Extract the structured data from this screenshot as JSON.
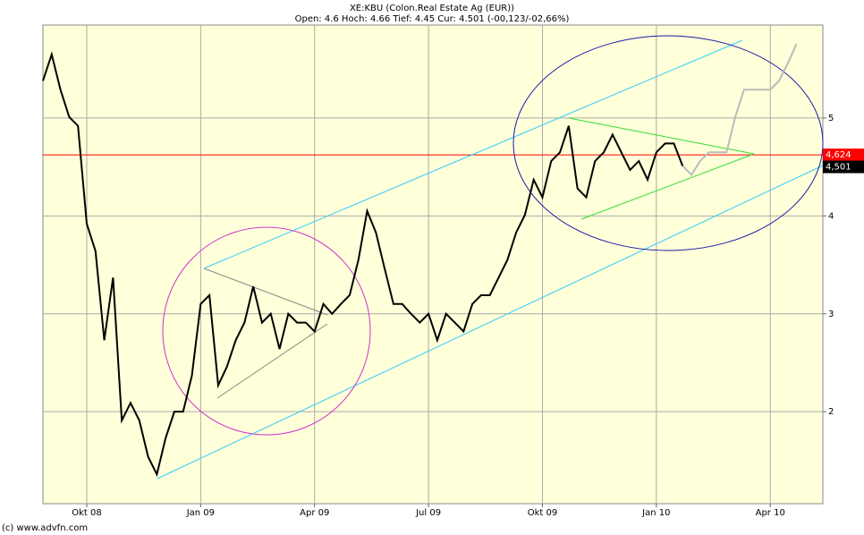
{
  "chart_data": {
    "type": "line",
    "title": "XE:KBU (Colon.Real Estate Ag (EUR))",
    "subtitle": "Open: 4.6 Hoch: 4.66 Tief: 4.45 Cur: 4.501 (-00,123/-02,66%)",
    "credit": "(c) www.advfn.com",
    "categories": [
      null,
      null,
      null,
      null,
      null,
      "Okt 08",
      null,
      null,
      null,
      null,
      null,
      null,
      null,
      null,
      null,
      null,
      null,
      null,
      "Jan 09",
      null,
      null,
      null,
      null,
      null,
      null,
      null,
      null,
      null,
      null,
      null,
      null,
      "Apr 09",
      null,
      null,
      null,
      null,
      null,
      null,
      null,
      null,
      null,
      null,
      null,
      null,
      "Jul 09",
      null,
      null,
      null,
      null,
      null,
      null,
      null,
      null,
      null,
      null,
      null,
      null,
      "Okt 09",
      null,
      null,
      null,
      null,
      null,
      null,
      null,
      null,
      null,
      null,
      null,
      null,
      "Jan 10",
      null,
      null,
      null,
      null,
      null,
      null,
      null,
      null,
      null,
      null,
      null,
      null,
      "Apr 10",
      null,
      null,
      null,
      null,
      null
    ],
    "series": [
      {
        "color": "#000000",
        "values": [
          5.38,
          5.65,
          5.29,
          5.01,
          4.92,
          3.92,
          3.64,
          2.73,
          3.37,
          1.91,
          2.09,
          1.91,
          1.54,
          1.36,
          1.73,
          2.0,
          2.0,
          2.37,
          3.1,
          3.19,
          2.27,
          2.46,
          2.73,
          2.91,
          3.28,
          2.91,
          3.0,
          2.64,
          3.0,
          2.91,
          2.91,
          2.82,
          3.1,
          3.0,
          3.1,
          3.19,
          3.55,
          4.05,
          3.83,
          3.46,
          3.1,
          3.1,
          3.0,
          2.91,
          3.0,
          2.73,
          3.0,
          2.91,
          2.82,
          3.1,
          3.19,
          3.19,
          3.37,
          3.55,
          3.83,
          4.01,
          4.37,
          4.19,
          4.56,
          4.65,
          4.92,
          4.28,
          4.19,
          4.56,
          4.65,
          4.83,
          4.65,
          4.47,
          4.56,
          4.37,
          4.65,
          4.74,
          4.74,
          4.51,
          null,
          null,
          null,
          null,
          null,
          null,
          null,
          null,
          null,
          null,
          null,
          null,
          null,
          null,
          null
        ]
      },
      {
        "color": "#bbbbbb",
        "values": [
          null,
          null,
          null,
          null,
          null,
          null,
          null,
          null,
          null,
          null,
          null,
          null,
          null,
          null,
          null,
          null,
          null,
          null,
          null,
          null,
          null,
          null,
          null,
          null,
          null,
          null,
          null,
          null,
          null,
          null,
          null,
          null,
          null,
          null,
          null,
          null,
          null,
          null,
          null,
          null,
          null,
          null,
          null,
          null,
          null,
          null,
          null,
          null,
          null,
          null,
          null,
          null,
          null,
          null,
          null,
          null,
          null,
          null,
          null,
          null,
          null,
          null,
          null,
          null,
          null,
          null,
          null,
          null,
          null,
          null,
          null,
          null,
          null,
          4.51,
          4.42,
          4.56,
          4.65,
          4.65,
          4.65,
          5.01,
          5.29,
          5.29,
          5.29,
          5.29,
          5.38,
          5.56,
          5.76,
          null,
          null
        ]
      }
    ],
    "ylim": [
      1.06,
      5.95
    ],
    "yticks": [
      2,
      3,
      4,
      5
    ],
    "grid": true,
    "price_lines": [
      {
        "value": 4.624,
        "label": "4,624",
        "color": "#ff0000"
      },
      {
        "value": 4.501,
        "label": "4,501",
        "color": "#000000"
      }
    ]
  }
}
